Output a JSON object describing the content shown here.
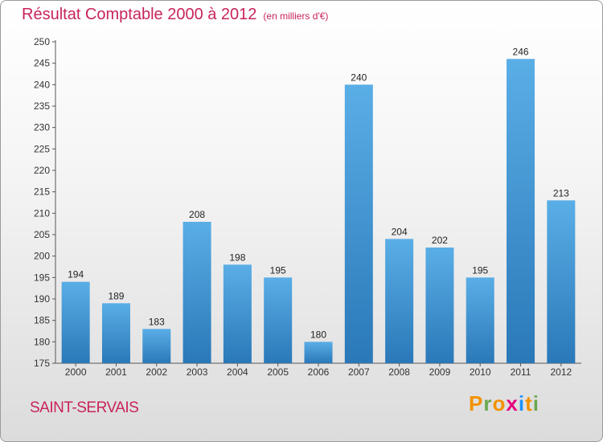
{
  "title": "Résultat Comptable 2000 à 2012",
  "subtitle": "(en milliers d'€)",
  "commune": "SAINT-SERVAIS",
  "logo": {
    "text": "Proxiti",
    "colors": [
      "#f39200",
      "#6aa84f",
      "#f39200",
      "#e6007e",
      "#1e90ff",
      "#f39200",
      "#6aa84f"
    ]
  },
  "colors": {
    "bar_top": "#5aaee6",
    "bar_bottom": "#2a78b8",
    "accent": "#c8245a"
  },
  "chart_data": {
    "type": "bar",
    "categories": [
      "2000",
      "2001",
      "2002",
      "2003",
      "2004",
      "2005",
      "2006",
      "2007",
      "2008",
      "2009",
      "2010",
      "2011",
      "2012"
    ],
    "values": [
      194,
      189,
      183,
      208,
      198,
      195,
      180,
      240,
      204,
      202,
      195,
      246,
      213
    ],
    "yticks": [
      175,
      180,
      185,
      190,
      195,
      200,
      205,
      210,
      215,
      220,
      225,
      230,
      235,
      240,
      245,
      250
    ],
    "ylim": [
      175,
      250
    ],
    "grid": false,
    "legend": "none"
  }
}
